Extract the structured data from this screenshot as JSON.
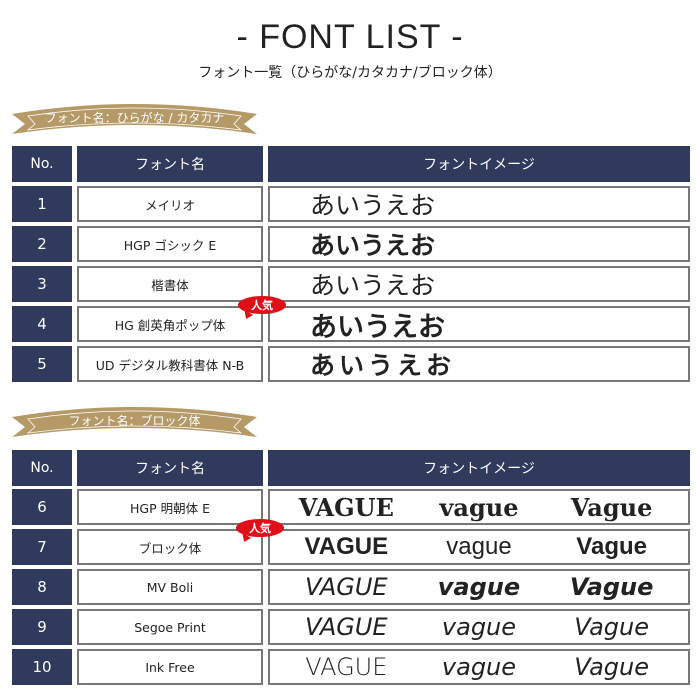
{
  "title": "-  FONT LIST -",
  "subtitle": "フォント一覧（ひらがな/カタカナ/ブロック体）",
  "colors": {
    "header": "#2f3a5c",
    "banner": "#b59a68",
    "badge": "#e0101a"
  },
  "sections": [
    {
      "banner": "フォント名：ひらがな / カタカナ",
      "headers": [
        "No.",
        "フォント名",
        "フォントイメージ"
      ],
      "rows": [
        {
          "no": "1",
          "name": "メイリオ",
          "sample": "あいうえお"
        },
        {
          "no": "2",
          "name": "HGP ゴシック E",
          "sample": "あいうえお"
        },
        {
          "no": "3",
          "name": "楷書体",
          "sample": "あいうえお"
        },
        {
          "no": "4",
          "name": "HG 創英角ポップ体",
          "sample": "あいうえお",
          "badge": "人気"
        },
        {
          "no": "5",
          "name": "UD デジタル教科書体 N-B",
          "sample": "あいうえお"
        }
      ]
    },
    {
      "banner": "フォント名：ブロック体",
      "headers": [
        "No.",
        "フォント名",
        "フォントイメージ"
      ],
      "rows": [
        {
          "no": "6",
          "name": "HGP 明朝体 E",
          "samples": [
            "VAGUE",
            "vague",
            "Vague"
          ]
        },
        {
          "no": "7",
          "name": "ブロック体",
          "samples": [
            "VAGUE",
            "vague",
            "Vague"
          ],
          "badge": "人気"
        },
        {
          "no": "8",
          "name": "MV Boli",
          "samples": [
            "VAGUE",
            "vague",
            "Vague"
          ]
        },
        {
          "no": "9",
          "name": "Segoe Print",
          "samples": [
            "VAGUE",
            "vague",
            "Vague"
          ]
        },
        {
          "no": "10",
          "name": "Ink Free",
          "samples": [
            "VAGUE",
            "vague",
            "Vague"
          ]
        }
      ]
    }
  ]
}
